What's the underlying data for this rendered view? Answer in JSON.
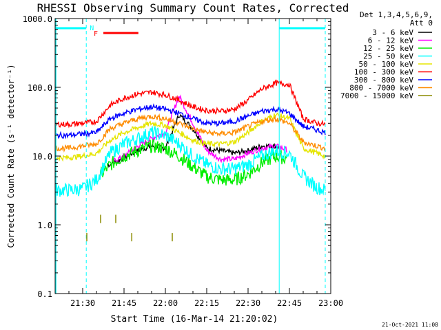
{
  "chart_data": {
    "type": "line",
    "title": "RHESSI Observing Summary Count Rates, Corrected",
    "xlabel": "Start Time (16-Mar-14 21:20:02)",
    "ylabel": "Corrected Count Rate (s⁻¹ detector⁻¹)",
    "yscale": "log",
    "ylim": [
      0.1,
      1000.0
    ],
    "xlim": [
      "21:20:02",
      "23:00:00"
    ],
    "x_ticks": [
      "21:30",
      "21:45",
      "22:00",
      "22:15",
      "22:30",
      "22:45",
      "23:00"
    ],
    "y_ticks": [
      "0.1",
      "1.0",
      "10.0",
      "100.0",
      "1000.0"
    ],
    "legend_title": [
      "Det 1,3,4,5,6,9,",
      "Att 0"
    ],
    "legend_position": "right",
    "grid": false,
    "footer_date": "21-Oct-2021 11:08",
    "x_minutes": [
      0,
      5,
      10,
      15,
      20,
      25,
      30,
      35,
      40,
      45,
      50,
      55,
      60,
      65,
      70,
      75,
      80,
      85,
      90,
      95,
      98
    ],
    "series": [
      {
        "name": "3 - 6 keV",
        "color": "#000000",
        "x_range": [
          19,
          82
        ],
        "values": [
          null,
          null,
          null,
          null,
          7.5,
          9.5,
          12,
          14,
          13,
          40,
          25,
          13,
          12,
          11,
          12,
          14,
          14,
          11,
          null,
          null,
          null
        ]
      },
      {
        "name": "6 - 12 keV",
        "color": "#ff00ff",
        "x_range": [
          21,
          84
        ],
        "values": [
          null,
          null,
          null,
          null,
          8,
          10,
          14,
          18,
          22,
          75,
          30,
          12,
          9,
          9,
          11,
          13,
          14,
          12,
          null,
          null,
          null
        ]
      },
      {
        "name": "12 - 25 keV",
        "color": "#00ee00",
        "x_range": [
          16,
          84
        ],
        "values": [
          null,
          null,
          null,
          4.5,
          7.5,
          10,
          12,
          14,
          13,
          10,
          7,
          5,
          4.5,
          4.5,
          5.5,
          8,
          10,
          9,
          null,
          null,
          null
        ]
      },
      {
        "name": "25 - 50 keV",
        "color": "#00ffff",
        "values": [
          3.2,
          3.2,
          3.3,
          4.5,
          11,
          15,
          18,
          22,
          20,
          15,
          10,
          7.5,
          6.5,
          6.5,
          7.5,
          10,
          12,
          11,
          5,
          3.5,
          3.2
        ]
      },
      {
        "name": "50 - 100 keV",
        "color": "#e5e500",
        "values": [
          9.5,
          9.5,
          10,
          11,
          17,
          22,
          26,
          30,
          28,
          22,
          17,
          15,
          15,
          16,
          22,
          32,
          40,
          35,
          13,
          11,
          10
        ]
      },
      {
        "name": "100 - 300 keV",
        "color": "#ff0000",
        "values": [
          29,
          29,
          30,
          32,
          55,
          70,
          80,
          85,
          78,
          65,
          52,
          46,
          45,
          48,
          65,
          95,
          115,
          110,
          35,
          30,
          29
        ]
      },
      {
        "name": "300 - 800 keV",
        "color": "#0000ff",
        "values": [
          20,
          20,
          21,
          22,
          35,
          42,
          48,
          52,
          48,
          42,
          35,
          30,
          30,
          32,
          38,
          45,
          48,
          42,
          27,
          24,
          22
        ]
      },
      {
        "name": "800 - 7000 keV",
        "color": "#ff8c00",
        "values": [
          13,
          13,
          14,
          15,
          25,
          30,
          35,
          38,
          35,
          30,
          25,
          22,
          21,
          22,
          27,
          32,
          35,
          30,
          16,
          14,
          13
        ]
      },
      {
        "name": "7000 - 15000 keV",
        "color": "#8b8b00",
        "values": [
          null,
          null,
          null,
          null,
          null,
          null,
          null,
          null,
          null,
          null,
          null,
          null,
          null,
          null,
          null,
          null,
          null,
          null,
          null,
          null,
          null
        ]
      }
    ],
    "annotations": {
      "night_label": "N",
      "flare_label": "F",
      "night_intervals": [
        [
          0,
          11.3
        ],
        [
          81.3,
          98
        ]
      ],
      "flare_interval": [
        17.5,
        30.2
      ]
    }
  }
}
